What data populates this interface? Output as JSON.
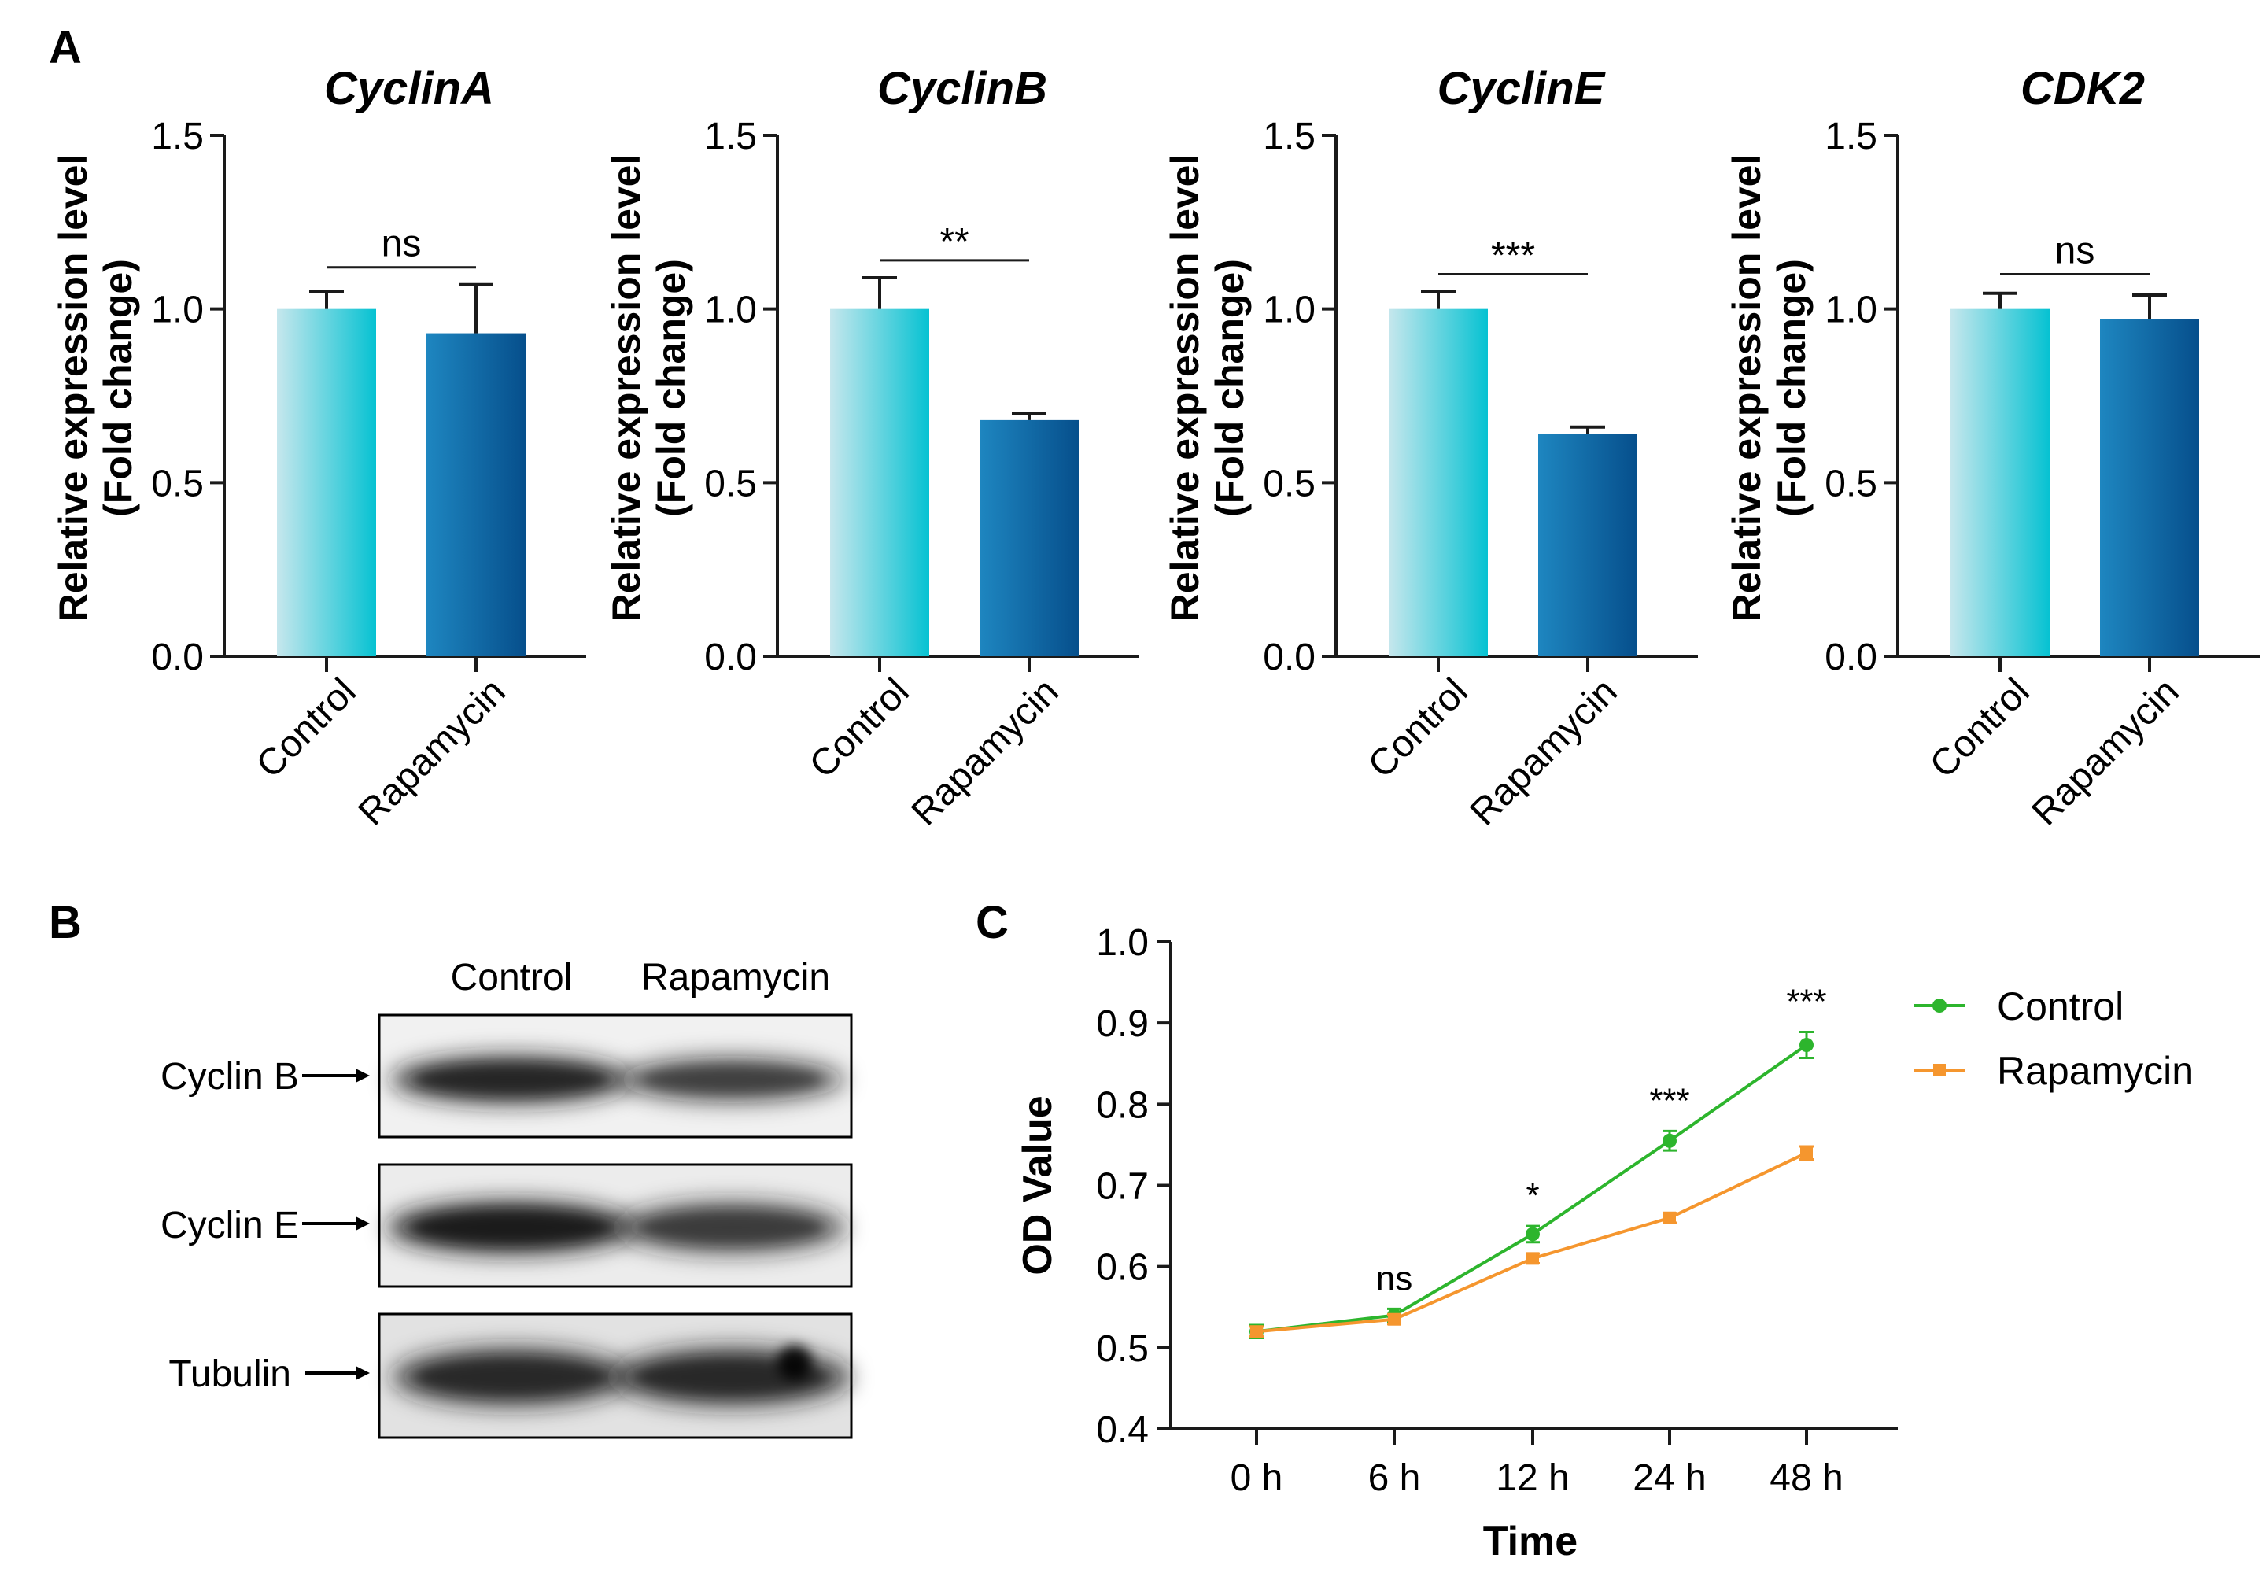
{
  "figure": {
    "panel_labels": [
      "A",
      "B",
      "C"
    ],
    "colors": {
      "axis": "#1a1a1a",
      "control_light": "#c6e7ed",
      "control_dark": "#06c2d2",
      "rapamycin_light": "#1e86c0",
      "rapamycin_dark": "#064f8c",
      "line_control": "#2db52d",
      "line_rapamycin": "#f5962e"
    }
  },
  "chart_data": [
    {
      "type": "bar",
      "title": "CyclinA",
      "ylabel_line1": "Relative expression level",
      "ylabel_line2": "(Fold change)",
      "xlabel": "",
      "categories": [
        "Control",
        "Rapamycin"
      ],
      "values": [
        1.0,
        0.93
      ],
      "errors": [
        0.05,
        0.14
      ],
      "ylim": [
        0,
        1.5
      ],
      "yticks": [
        "0.0",
        "0.5",
        "1.0",
        "1.5"
      ],
      "significance": "ns"
    },
    {
      "type": "bar",
      "title": "CyclinB",
      "ylabel_line1": "Relative expression level",
      "ylabel_line2": "(Fold change)",
      "xlabel": "",
      "categories": [
        "Control",
        "Rapamycin"
      ],
      "values": [
        1.0,
        0.68
      ],
      "errors": [
        0.09,
        0.02
      ],
      "ylim": [
        0,
        1.5
      ],
      "yticks": [
        "0.0",
        "0.5",
        "1.0",
        "1.5"
      ],
      "significance": "**"
    },
    {
      "type": "bar",
      "title": "CyclinE",
      "ylabel_line1": "Relative expression level",
      "ylabel_line2": "(Fold change)",
      "xlabel": "",
      "categories": [
        "Control",
        "Rapamycin"
      ],
      "values": [
        1.0,
        0.64
      ],
      "errors": [
        0.05,
        0.02
      ],
      "ylim": [
        0,
        1.5
      ],
      "yticks": [
        "0.0",
        "0.5",
        "1.0",
        "1.5"
      ],
      "significance": "***"
    },
    {
      "type": "bar",
      "title": "CDK2",
      "ylabel_line1": "Relative expression level",
      "ylabel_line2": "(Fold change)",
      "xlabel": "",
      "categories": [
        "Control",
        "Rapamycin"
      ],
      "values": [
        1.0,
        0.97
      ],
      "errors": [
        0.045,
        0.07
      ],
      "ylim": [
        0,
        1.5
      ],
      "yticks": [
        "0.0",
        "0.5",
        "1.0",
        "1.5"
      ],
      "significance": "ns"
    },
    {
      "type": "line",
      "title": "",
      "xlabel": "Time",
      "ylabel": "OD Value",
      "categories": [
        "0 h",
        "6 h",
        "12 h",
        "24 h",
        "48 h"
      ],
      "series": [
        {
          "name": "Control",
          "values": [
            0.52,
            0.54,
            0.64,
            0.755,
            0.873
          ],
          "errors": [
            0.008,
            0.008,
            0.01,
            0.012,
            0.016
          ]
        },
        {
          "name": "Rapamycin",
          "values": [
            0.52,
            0.535,
            0.61,
            0.66,
            0.74
          ],
          "errors": [
            0.006,
            0.006,
            0.006,
            0.006,
            0.008
          ]
        }
      ],
      "ylim": [
        0.4,
        1.0
      ],
      "yticks": [
        "0.4",
        "0.5",
        "0.6",
        "0.7",
        "0.8",
        "0.9",
        "1.0"
      ],
      "significance": [
        "",
        "ns",
        "*",
        "***",
        "***"
      ],
      "legend": "top-right"
    }
  ],
  "western_blot": {
    "lanes": [
      "Control",
      "Rapamycin"
    ],
    "rows": [
      {
        "label": "Cyclin B",
        "band_intensity": [
          0.85,
          0.6
        ]
      },
      {
        "label": "Cyclin E",
        "band_intensity": [
          0.95,
          0.65
        ]
      },
      {
        "label": "Tubulin",
        "band_intensity": [
          0.8,
          0.8
        ]
      }
    ]
  }
}
